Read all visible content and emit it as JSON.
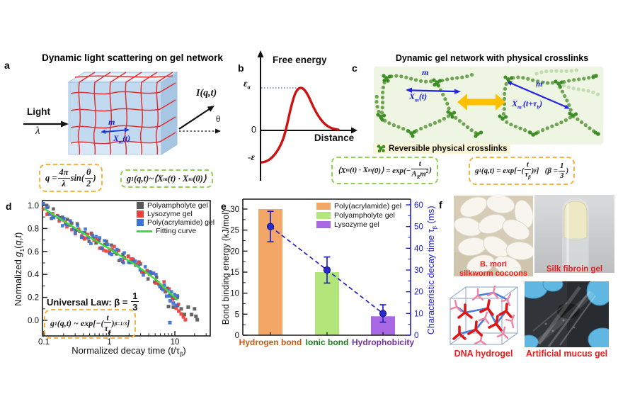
{
  "figure": {
    "background": "#ffffff"
  },
  "panels": {
    "a": {
      "label": "a",
      "title": "Dynamic light scattering on gel network",
      "light_label": "Light",
      "wavelength_symbol": "λ",
      "scattered_intensity": "I(q,t)",
      "scattering_angle": "θ",
      "mesh_label": "m",
      "mesh_vector_html": "X<sub>m</sub>(t)",
      "eq_scattering_vector_html": "q = <span class='fr'><span class='nu'>4π</span><span class='de'>λ</span></span>sin(<span class='fr'><span class='nu'>θ</span><span class='de'>2</span></span>)",
      "eq_field_correlation_html": "g<sub>1</sub>(q,t)~⟨X<sub>m</sub>(t) · X<sub>m</sub>(0)⟩"
    },
    "b": {
      "label": "b",
      "title": "Free energy",
      "xlabel": "Distance",
      "y_activation_html": "ε<sub>a</sub>",
      "y_zero": "0",
      "y_well_html": "-ε"
    },
    "c": {
      "label": "c",
      "title": "Dynamic gel network with physical crosslinks",
      "mesh_label": "m",
      "mesh_vector_html": "X<sub>m</sub>(t)",
      "mesh_label_prime": "m'",
      "mesh_vector_prime_html": "X<sub>m'</sub>(t+τ<sub>b</sub>)",
      "crosslink_note": "Reversible physical crosslinks",
      "eq_mode_relaxation_html": "⟨X<sub>m</sub>(t) · X<sub>m</sub>(0)⟩ = exp(−<span class='fr'><span class='nu'>t</span><span class='de'>A<sub>R</sub>m<sup>2</sup></span></span>)",
      "eq_stretched_exponential_html": "g<sub>1</sub>(q,t) = exp[−(<span class='fr'><span class='nu'>t</span><span class='de'>τ<sub>β</sub></span></span>)<sup>β</sup>] &nbsp;&nbsp;(β = <span class='fr'><span class='nu'>1</span><span class='de'>3</span></span>)"
    },
    "d": {
      "label": "d",
      "universal_law_html": "Universal Law: β = <span class='fr'><span class='nu'>1</span><span class='de'>3</span></span>",
      "equation_html": "g<sub>1</sub>(q,t) ~ exp[−(<span class='fr'><span class='nu'>t</span><span class='de'>τ<sub>β</sub></span></span>)<sup>β=1/3</sup>]"
    },
    "e": {
      "label": "e"
    },
    "f": {
      "label": "f",
      "captions": {
        "cocoons_line1": "B. mori",
        "cocoons_line2": "silkworm cocoons",
        "silk": "Silk fibroin gel",
        "dna": "DNA hydrogel",
        "mucus": "Artificial mucus gel"
      }
    }
  },
  "chart_data": [
    {
      "panel": "d",
      "type": "scatter",
      "xscale": "log",
      "xlabel_html": "Normalized decay time (t/τ<sub>β</sub>)",
      "ylabel_html": "Normalized <i>g</i><sub>1</sub>(<i>q</i>,<i>t</i>)",
      "xlim": [
        0.095,
        34
      ],
      "ylim": [
        -0.14,
        1.04
      ],
      "xticks": [
        0.1,
        1,
        10
      ],
      "xtick_labels": [
        "0.1",
        "1",
        "10"
      ],
      "yticks": [
        0.0,
        0.2,
        0.4,
        0.6,
        0.8,
        1.0
      ],
      "series": [
        {
          "name": "Polyampholyte gel",
          "color": "#595959",
          "marker": "square",
          "seed": 7,
          "tail": [
            [
              8,
              0.12
            ],
            [
              9.5,
              0.115
            ],
            [
              11,
              0.13
            ],
            [
              12.5,
              0.1
            ],
            [
              14,
              0.05
            ],
            [
              16,
              0.115
            ],
            [
              18,
              0.05
            ],
            [
              20,
              0.1
            ],
            [
              21,
              0.035
            ],
            [
              22,
              0.005
            ]
          ]
        },
        {
          "name": "Lysozyme gel",
          "color": "#e8403c",
          "marker": "square",
          "seed": 13,
          "tail": [
            [
              10.5,
              0.105
            ],
            [
              11.5,
              0.08
            ],
            [
              12.5,
              0.055
            ],
            [
              13.5,
              0.03
            ],
            [
              14.5,
              0.005
            ]
          ]
        },
        {
          "name": "Poly(acrylamide) gel",
          "color": "#3a72d9",
          "marker": "square",
          "seed": 29,
          "tail": [
            [
              7.5,
              0.21
            ],
            [
              8.5,
              0.17
            ],
            [
              9.5,
              0.15
            ],
            [
              10.5,
              0.13
            ],
            [
              8.4,
              -0.02
            ]
          ]
        }
      ],
      "fit": {
        "name": "Fitting curve",
        "color": "#3ddc3d",
        "x": [
          0.1,
          0.15,
          0.22,
          0.33,
          0.5,
          0.75,
          1.1,
          1.6,
          2.4,
          3.6,
          5.4,
          8,
          11
        ],
        "y": [
          0.975,
          0.91,
          0.85,
          0.79,
          0.725,
          0.665,
          0.61,
          0.55,
          0.49,
          0.42,
          0.345,
          0.25,
          0.175
        ]
      },
      "scatter_jitter": 0.05,
      "points_per_series": 52
    },
    {
      "panel": "e",
      "type": "bar_line_dual_axis",
      "categories": [
        "Hydrogen bond",
        "Ionic bond",
        "Hydrophobicity"
      ],
      "category_colors": [
        "#c55a11",
        "#1e7a1e",
        "#7030a0"
      ],
      "bar_values_kJ_mol": [
        30,
        15,
        4.5
      ],
      "bar_colors": [
        "#f2a766",
        "#b2e57a",
        "#a968e3"
      ],
      "bar_legend": [
        "Poly(acrylamide) gel",
        "Polyampholyte gel",
        "Lysozyme gel"
      ],
      "decay_times_ms": [
        50,
        30,
        10
      ],
      "decay_errors_ms": [
        7,
        6,
        4
      ],
      "line_color": "#2020cc",
      "ylabel_left_html": "Bond binding energy (kJ/mol)",
      "ylim_left": [
        0,
        32.5
      ],
      "yticks_left": [
        0,
        5,
        10,
        15,
        20,
        25,
        30
      ],
      "ylabel_right_html": "Characteristic decay time τ<sub>β</sub> (ms)",
      "ylim_right": [
        0,
        64
      ],
      "yticks_right": [
        0,
        10,
        20,
        30,
        40,
        50,
        60
      ]
    }
  ]
}
